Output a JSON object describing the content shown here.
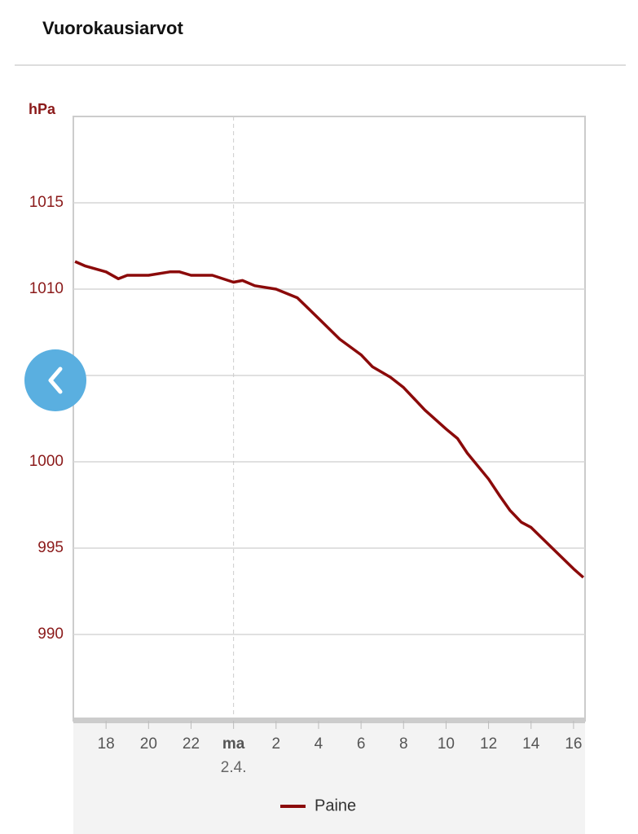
{
  "header": {
    "title": "Vuorokausiarvot"
  },
  "chart_data": {
    "type": "line",
    "y_axis_label": "hPa",
    "x_date_label": "2.4.",
    "xlim": [
      16.46,
      40.54
    ],
    "xticks": [
      18,
      20,
      22,
      {
        "value": 24,
        "label": "ma"
      },
      {
        "value": 26,
        "label": "2"
      },
      {
        "value": 28,
        "label": "4"
      },
      {
        "value": 30,
        "label": "6"
      },
      {
        "value": 32,
        "label": "8"
      },
      {
        "value": 34,
        "label": "10"
      },
      {
        "value": 36,
        "label": "12"
      },
      {
        "value": 38,
        "label": "14"
      },
      {
        "value": 40,
        "label": "16"
      }
    ],
    "ylim": [
      985,
      1020
    ],
    "yticks": [
      990,
      995,
      1000,
      1005,
      1010,
      1015
    ],
    "grid": true,
    "day_divider": 24,
    "legend": "bottom",
    "series": [
      {
        "name": "Paine",
        "color": "#8b0a0a",
        "x": [
          16.54,
          17,
          18,
          18.58,
          19,
          20,
          21,
          21.46,
          22,
          23,
          24,
          24.42,
          25,
          26,
          27,
          28,
          29,
          30,
          30.54,
          31.38,
          32,
          33,
          34,
          34.54,
          35,
          36,
          36.54,
          37,
          37.54,
          38,
          39,
          40,
          40.46
        ],
        "values": [
          1011.6,
          1011.35,
          1011.0,
          1010.6,
          1010.8,
          1010.8,
          1011.0,
          1011.0,
          1010.8,
          1010.8,
          1010.4,
          1010.5,
          1010.2,
          1010.0,
          1009.5,
          1008.3,
          1007.1,
          1006.2,
          1005.5,
          1004.9,
          1004.3,
          1003.0,
          1001.9,
          1001.35,
          1000.5,
          999.0,
          998.0,
          997.2,
          996.5,
          996.2,
          995.0,
          993.8,
          993.3
        ]
      }
    ]
  }
}
